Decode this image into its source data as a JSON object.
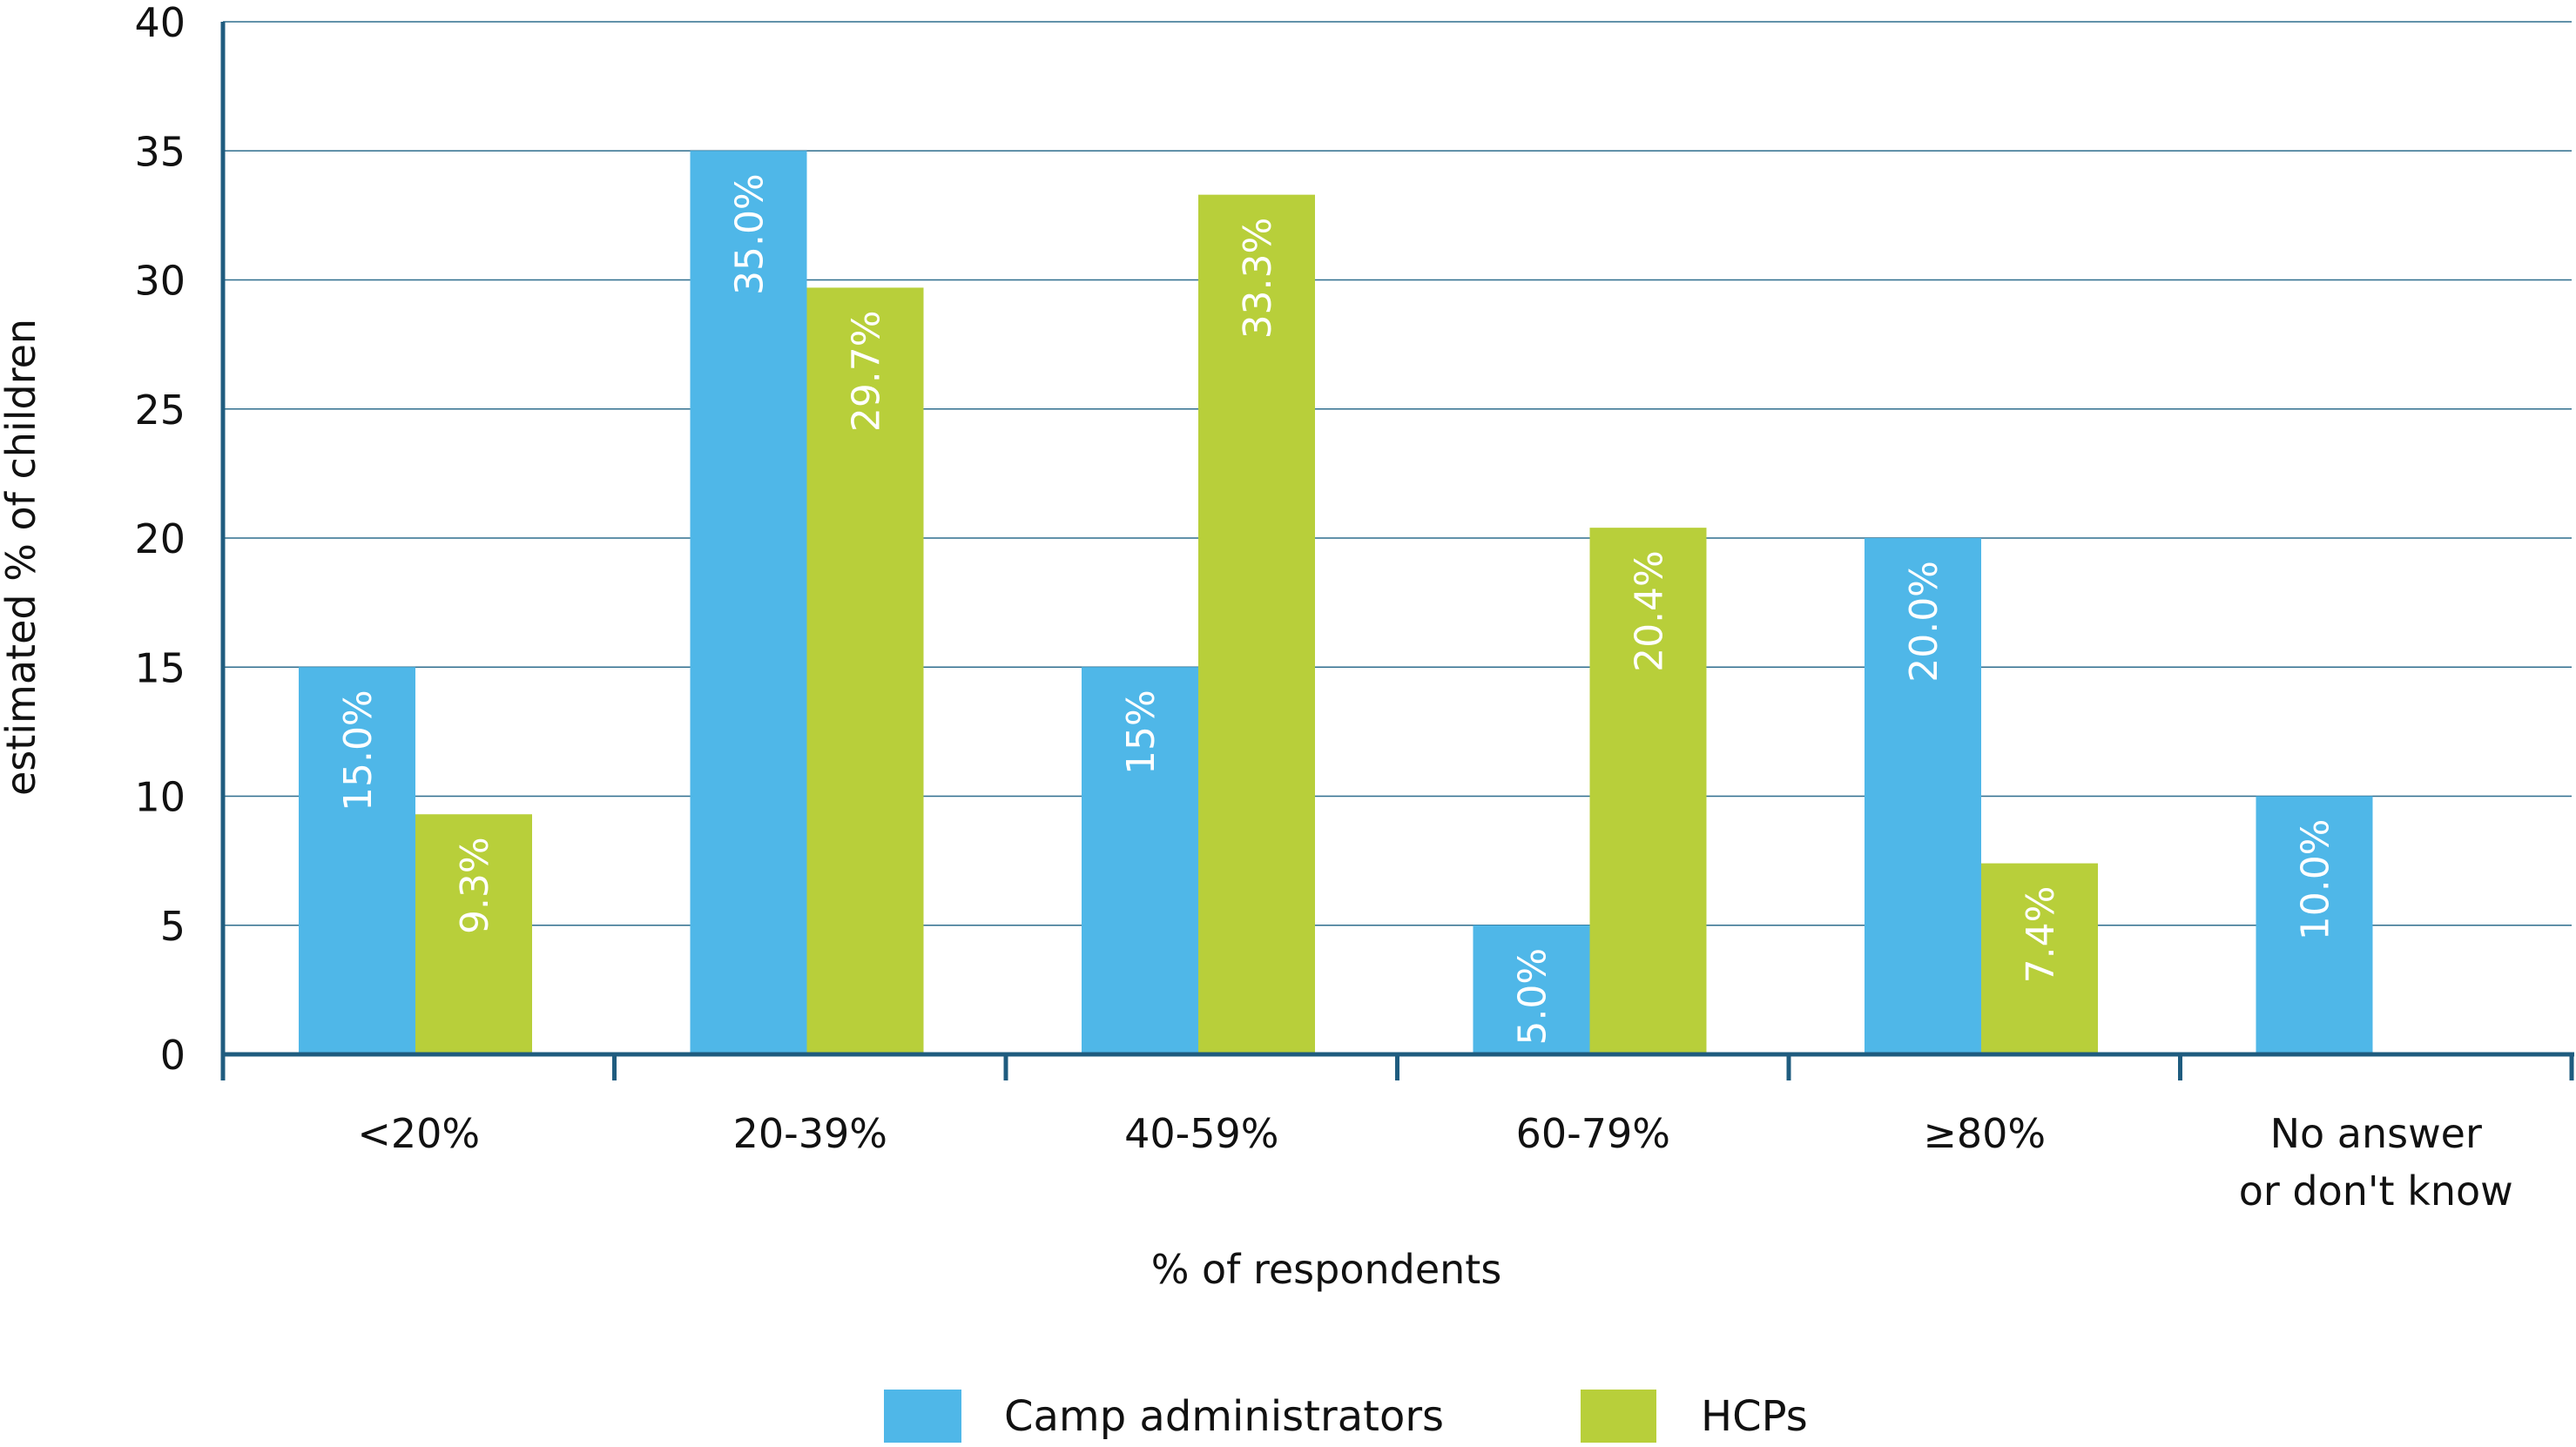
{
  "chart_data": {
    "type": "bar",
    "categories": [
      "<20%",
      "20-39%",
      "40-59%",
      "60-79%",
      "≥80%",
      "No answer\nor don't know"
    ],
    "series": [
      {
        "name": "Camp administrators",
        "color": "#4FB7E8",
        "values": [
          15.0,
          35.0,
          15.0,
          5.0,
          20.0,
          10.0
        ],
        "labels": [
          "15.0%",
          "35.0%",
          "15%",
          "5.0%",
          "20.0%",
          "10.0%"
        ]
      },
      {
        "name": "HCPs",
        "color": "#B8CF3A",
        "values": [
          9.3,
          29.7,
          33.3,
          20.4,
          7.4,
          null
        ],
        "labels": [
          "9.3%",
          "29.7%",
          "33.3%",
          "20.4%",
          "7.4%",
          null
        ]
      }
    ],
    "xlabel": "% of respondents",
    "ylabel": "estimated % of children",
    "ylim": [
      0,
      40
    ],
    "yticks": [
      0,
      5,
      10,
      15,
      20,
      25,
      30,
      35,
      40
    ],
    "grid": true,
    "legend": "bottom",
    "axis_color": "#1F5C7F"
  }
}
